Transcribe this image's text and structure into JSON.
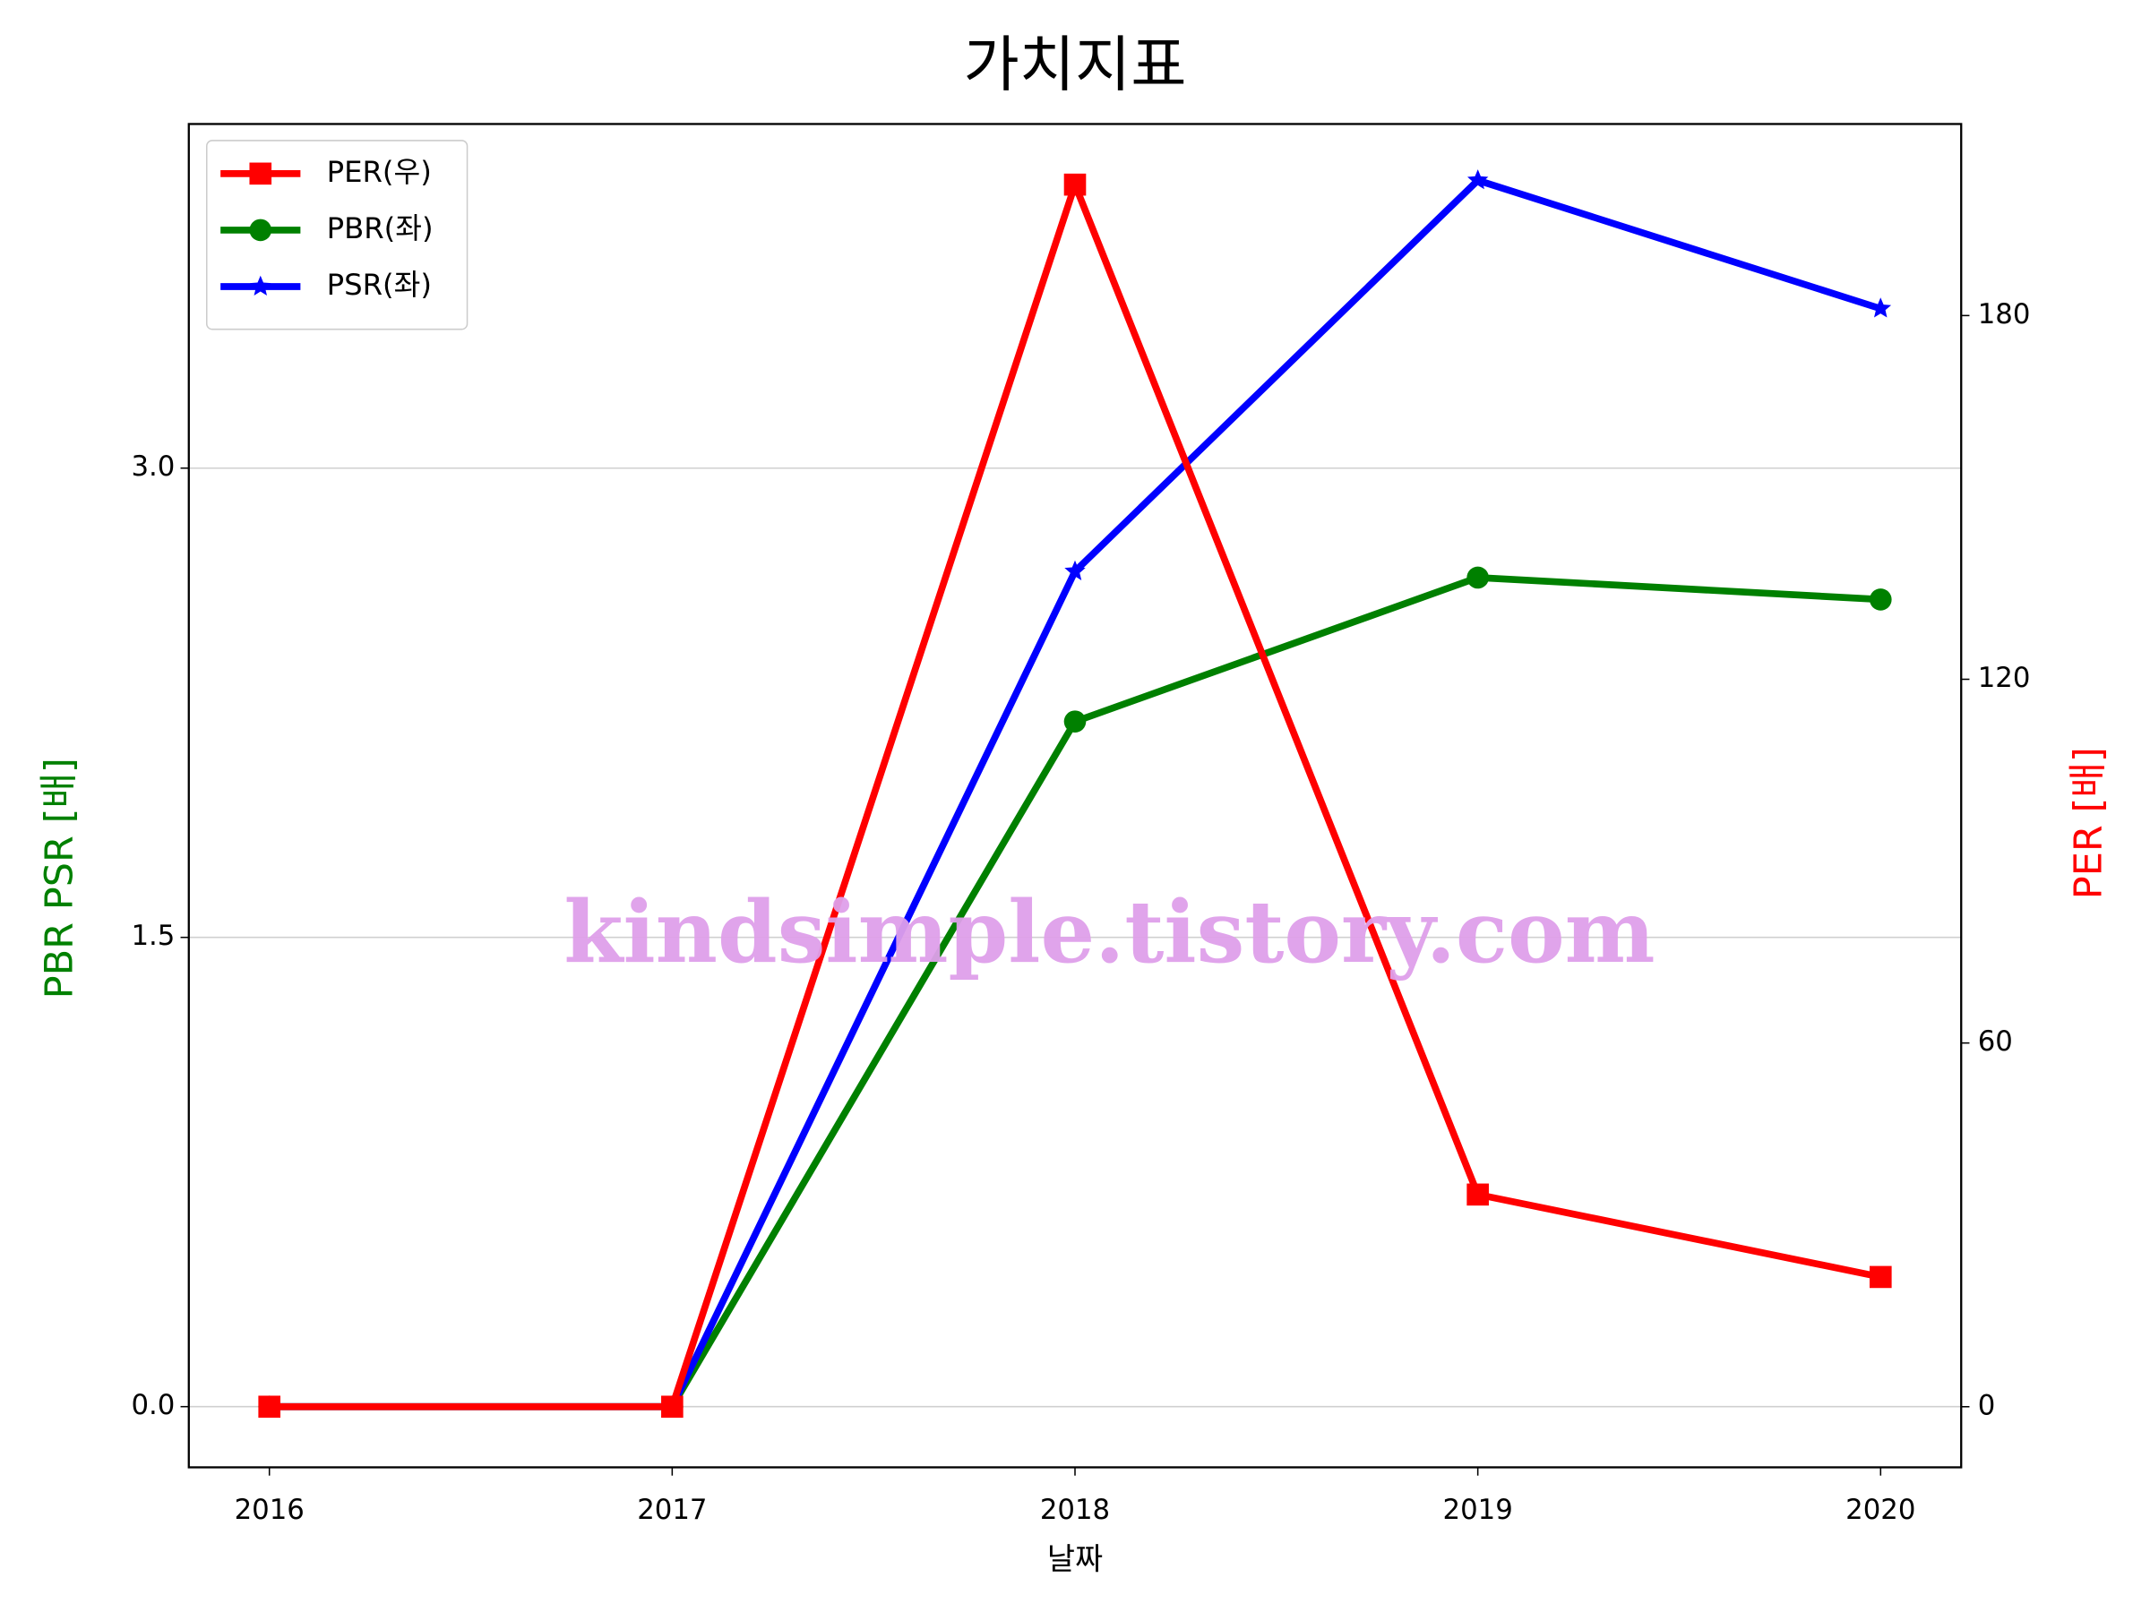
{
  "chart_data": {
    "type": "line",
    "title": "가치지표",
    "x_label": "날짜",
    "y_label": "PBR PSR [배]",
    "y2_label": "PER [배]",
    "y_label_color": "green",
    "y2_label_color": "red",
    "x": [
      2016,
      2017,
      2018,
      2019,
      2020
    ],
    "xlim": [
      2015.8,
      2020.2
    ],
    "xticks": [
      2016,
      2017,
      2018,
      2019,
      2020
    ],
    "ylim": [
      -0.194,
      4.1
    ],
    "yticks": [
      {
        "value": 0,
        "label": "0.0"
      },
      {
        "value": 1.5,
        "label": "1.5"
      },
      {
        "value": 3,
        "label": "3.0"
      }
    ],
    "y2lim": [
      -10,
      211.6
    ],
    "y2ticks": [
      0,
      60,
      120,
      180
    ],
    "grid": true,
    "legend": "upper left",
    "annotation": "kindsimple.tistory.com",
    "series": [
      {
        "name": "PER(우)",
        "color": "red",
        "marker": "square",
        "axis": "y2",
        "values": [
          0,
          0,
          201.6,
          35.0,
          21.4
        ]
      },
      {
        "name": "PBR(좌)",
        "color": "green",
        "marker": "circle",
        "values": [
          0,
          0,
          2.19,
          2.65,
          2.58
        ]
      },
      {
        "name": "PSR(좌)",
        "color": "blue",
        "marker": "star",
        "values": [
          0,
          0,
          2.67,
          3.92,
          3.51
        ]
      }
    ]
  }
}
